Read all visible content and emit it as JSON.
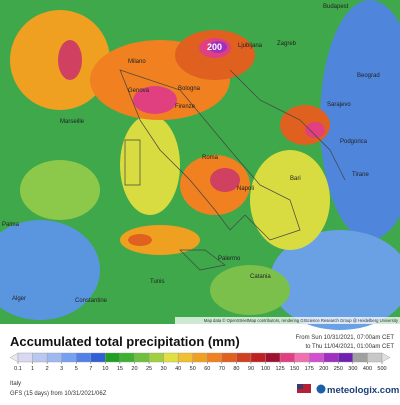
{
  "map": {
    "cities": [
      "Budapest",
      "Ljubljana",
      "Zagreb",
      "Milano",
      "Genova",
      "Marseille",
      "Bologna",
      "Firenze",
      "Sarajevo",
      "Beograd",
      "Podgorica",
      "Roma",
      "Napoli",
      "Bari",
      "Tirane",
      "Palma",
      "Palermo",
      "Catania",
      "Alger",
      "Constantine",
      "Tunis"
    ],
    "peak_label": "200",
    "attribution": "Map data © OpenStreetMap contributors, rendering GIScience Research Group @ Heidelberg University"
  },
  "legend": {
    "title": "Accumulated total precipitation (mm)",
    "from": "From Sun 10/31/2021, 07:00am CET",
    "to": "to Thu 11/04/2021, 01:00am CET",
    "ticks": [
      0.1,
      1,
      2,
      3,
      5,
      7,
      10,
      15,
      20,
      25,
      30,
      40,
      50,
      60,
      70,
      80,
      90,
      100,
      125,
      150,
      175,
      200,
      250,
      300,
      400,
      500
    ],
    "colors": [
      "#e8e8ee",
      "#d8d8f0",
      "#b8c8f0",
      "#a0b8f0",
      "#78a0f0",
      "#5080e8",
      "#3060d8",
      "#20a020",
      "#40b030",
      "#70c040",
      "#a0d040",
      "#e0e040",
      "#f0c030",
      "#f0a020",
      "#f08020",
      "#e06020",
      "#d04020",
      "#c02020",
      "#a01030",
      "#e04080",
      "#f070b0",
      "#d050d0",
      "#a030c0",
      "#7020b0",
      "#a0a0a0",
      "#c8c8c8",
      "#e0e0e0"
    ]
  },
  "footer": {
    "region": "Italy",
    "model": "GFS (15 days) from 10/31/2021/06Z",
    "brand": "meteologix.com"
  }
}
